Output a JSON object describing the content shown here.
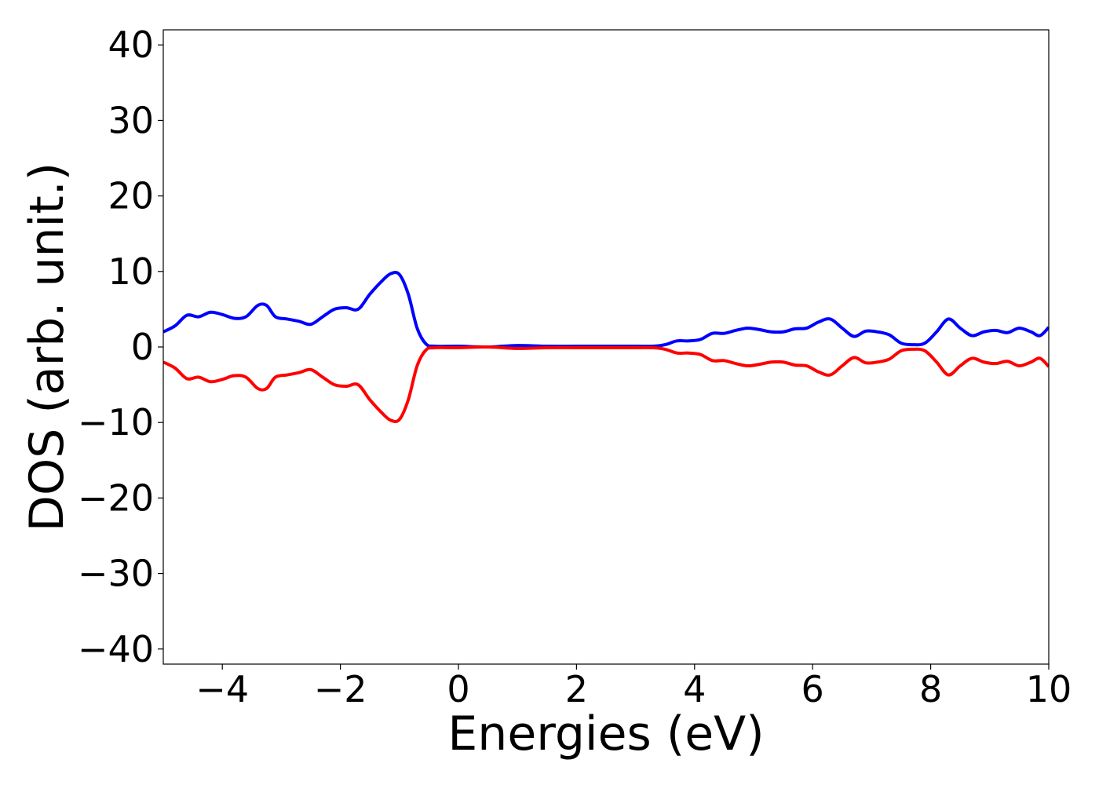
{
  "chart_data": {
    "type": "line",
    "title": "",
    "xlabel": "Energies (eV)",
    "ylabel": "DOS (arb. unit.)",
    "xlim": [
      -5,
      10
    ],
    "ylim": [
      -42,
      42
    ],
    "xticks": [
      -4,
      -2,
      0,
      2,
      4,
      6,
      8,
      10
    ],
    "yticks": [
      40,
      30,
      20,
      10,
      0,
      -10,
      -20,
      -30,
      -40
    ],
    "xtick_labels": [
      "−4",
      "−2",
      "0",
      "2",
      "4",
      "6",
      "8",
      "10"
    ],
    "ytick_labels": [
      "40",
      "30",
      "20",
      "10",
      "0",
      "−10",
      "−20",
      "−30",
      "−40"
    ],
    "grid": false,
    "legend": "none",
    "series": [
      {
        "color": "#0000ff",
        "x": [
          -5.0,
          -4.8,
          -4.6,
          -4.4,
          -4.2,
          -4.0,
          -3.8,
          -3.6,
          -3.4,
          -3.25,
          -3.1,
          -2.9,
          -2.7,
          -2.5,
          -2.3,
          -2.1,
          -1.9,
          -1.7,
          -1.5,
          -1.3,
          -1.15,
          -1.0,
          -0.85,
          -0.7,
          -0.55,
          -0.4,
          0.0,
          0.5,
          1.0,
          1.5,
          2.0,
          2.5,
          3.0,
          3.3,
          3.5,
          3.7,
          3.9,
          4.1,
          4.3,
          4.5,
          4.7,
          4.9,
          5.1,
          5.3,
          5.5,
          5.7,
          5.9,
          6.1,
          6.3,
          6.5,
          6.7,
          6.9,
          7.1,
          7.3,
          7.5,
          7.7,
          7.9,
          8.1,
          8.3,
          8.5,
          8.7,
          8.9,
          9.1,
          9.3,
          9.5,
          9.7,
          9.85,
          10.0
        ],
        "y": [
          2.0,
          2.8,
          4.2,
          4.0,
          4.6,
          4.3,
          3.8,
          4.0,
          5.5,
          5.5,
          4.0,
          3.7,
          3.4,
          3.0,
          4.0,
          5.0,
          5.2,
          5.0,
          7.0,
          8.7,
          9.7,
          9.6,
          7.0,
          2.5,
          0.4,
          0.1,
          0.1,
          0.0,
          0.2,
          0.1,
          0.1,
          0.1,
          0.1,
          0.1,
          0.3,
          0.8,
          0.8,
          1.0,
          1.8,
          1.8,
          2.2,
          2.5,
          2.3,
          2.0,
          2.0,
          2.4,
          2.5,
          3.3,
          3.7,
          2.5,
          1.4,
          2.1,
          2.0,
          1.6,
          0.5,
          0.3,
          0.5,
          2.0,
          3.7,
          2.5,
          1.5,
          2.0,
          2.2,
          1.9,
          2.5,
          2.0,
          1.5,
          2.6
        ]
      },
      {
        "color": "#ff0000",
        "x": [
          -5.0,
          -4.8,
          -4.6,
          -4.4,
          -4.2,
          -4.0,
          -3.8,
          -3.6,
          -3.4,
          -3.25,
          -3.1,
          -2.9,
          -2.7,
          -2.5,
          -2.3,
          -2.1,
          -1.9,
          -1.7,
          -1.5,
          -1.3,
          -1.15,
          -1.0,
          -0.85,
          -0.7,
          -0.55,
          -0.4,
          0.0,
          0.5,
          1.0,
          1.5,
          2.0,
          2.5,
          3.0,
          3.3,
          3.5,
          3.7,
          3.9,
          4.1,
          4.3,
          4.5,
          4.7,
          4.9,
          5.1,
          5.3,
          5.5,
          5.7,
          5.9,
          6.1,
          6.3,
          6.5,
          6.7,
          6.9,
          7.1,
          7.3,
          7.5,
          7.7,
          7.9,
          8.1,
          8.3,
          8.5,
          8.7,
          8.9,
          9.1,
          9.3,
          9.5,
          9.7,
          9.85,
          10.0
        ],
        "y": [
          -2.0,
          -2.8,
          -4.2,
          -4.0,
          -4.6,
          -4.3,
          -3.8,
          -4.0,
          -5.5,
          -5.5,
          -4.0,
          -3.7,
          -3.4,
          -3.0,
          -4.0,
          -5.0,
          -5.2,
          -5.0,
          -7.0,
          -8.7,
          -9.7,
          -9.6,
          -7.0,
          -2.5,
          -0.4,
          -0.1,
          -0.1,
          0.0,
          -0.2,
          -0.1,
          -0.1,
          -0.1,
          -0.1,
          -0.1,
          -0.3,
          -0.8,
          -0.8,
          -1.0,
          -1.8,
          -1.8,
          -2.2,
          -2.5,
          -2.3,
          -2.0,
          -2.0,
          -2.4,
          -2.5,
          -3.3,
          -3.7,
          -2.5,
          -1.4,
          -2.1,
          -2.0,
          -1.6,
          -0.5,
          -0.3,
          -0.5,
          -2.0,
          -3.7,
          -2.5,
          -1.5,
          -2.0,
          -2.2,
          -1.9,
          -2.5,
          -2.0,
          -1.5,
          -2.6
        ]
      }
    ]
  }
}
